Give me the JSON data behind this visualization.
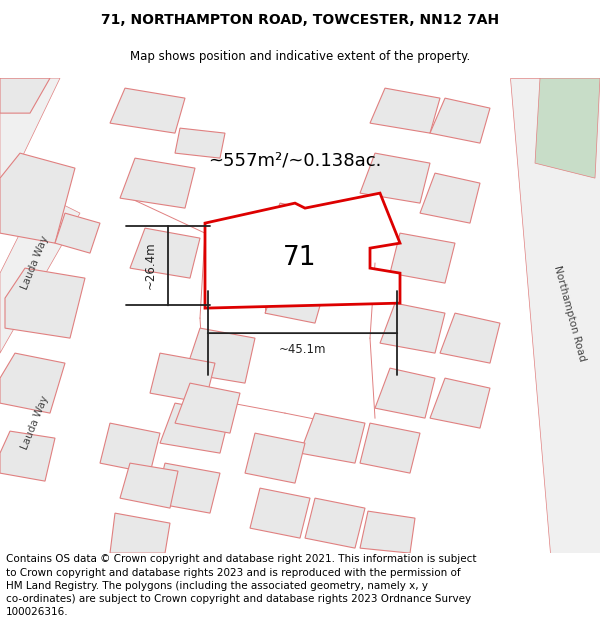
{
  "title": "71, NORTHAMPTON ROAD, TOWCESTER, NN12 7AH",
  "subtitle": "Map shows position and indicative extent of the property.",
  "title_fontsize": 10,
  "subtitle_fontsize": 8.5,
  "area_text": "~557m²/~0.138ac.",
  "property_label": "71",
  "dim_width": "~45.1m",
  "dim_height": "~26.4m",
  "footer_lines": [
    "Contains OS data © Crown copyright and database right 2021. This information is subject",
    "to Crown copyright and database rights 2023 and is reproduced with the permission of",
    "HM Land Registry. The polygons (including the associated geometry, namely x, y",
    "co-ordinates) are subject to Crown copyright and database rights 2023 Ordnance Survey",
    "100026316."
  ],
  "footer_fontsize": 7.5,
  "background": "#ffffff",
  "map_bg": "#ffffff",
  "building_fill": "#e8e8e8",
  "building_edge": "#e08080",
  "road_fill": "#f5f5f5",
  "road_edge": "#e08080",
  "prop_fill": "#ffffff",
  "prop_edge": "#dd0000",
  "prop_edge_lw": 2.0,
  "green_fill": "#d0e8d0",
  "label_color": "#444444",
  "dim_color": "#222222"
}
